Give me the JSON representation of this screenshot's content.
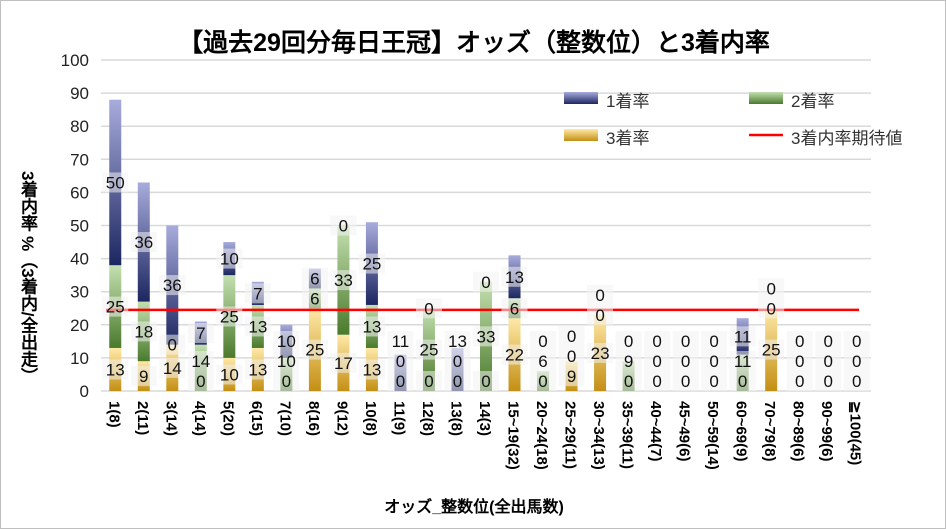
{
  "chart_data": {
    "type": "bar",
    "stacked": true,
    "title": "【過去29回分毎日王冠】オッズ（整数位）と3着内率",
    "xlabel": "オッズ_整数位(全出馬数)",
    "ylabel": "3着内率 %（3着内/全出走）",
    "ylim": [
      0,
      100
    ],
    "yticks": [
      0,
      10,
      20,
      30,
      40,
      50,
      60,
      70,
      80,
      90,
      100
    ],
    "grid": true,
    "legend": "top-right",
    "categories": [
      "1(8)",
      "2(11)",
      "3(14)",
      "4(14)",
      "5(20)",
      "6(15)",
      "7(10)",
      "8(16)",
      "9(12)",
      "10(8)",
      "11(9)",
      "12(8)",
      "13(8)",
      "14(3)",
      "15~19(32)",
      "20~24(18)",
      "25~29(11)",
      "30~34(13)",
      "35~39(11)",
      "40~44(7)",
      "45~49(6)",
      "50~59(14)",
      "60~69(9)",
      "70~79(8)",
      "80~89(6)",
      "90~99(6)",
      "≧100(45)"
    ],
    "series": [
      {
        "name": "3着率",
        "color": "#c8961e",
        "values": [
          13,
          9,
          14,
          0,
          10,
          13,
          0,
          25,
          17,
          13,
          0,
          0,
          0,
          0,
          22,
          0,
          9,
          23,
          0,
          0,
          0,
          0,
          0,
          25,
          0,
          0,
          0
        ]
      },
      {
        "name": "2着率",
        "color": "#5a8a3c",
        "values": [
          25,
          18,
          0,
          14,
          25,
          13,
          10,
          6,
          33,
          13,
          0,
          25,
          0,
          33,
          6,
          6,
          0,
          0,
          9,
          0,
          0,
          0,
          11,
          0,
          0,
          0,
          0
        ]
      },
      {
        "name": "1着率",
        "color": "#2e3a7a",
        "values": [
          50,
          36,
          36,
          7,
          10,
          7,
          10,
          6,
          0,
          25,
          11,
          0,
          13,
          0,
          13,
          0,
          0,
          0,
          0,
          0,
          0,
          0,
          11,
          0,
          0,
          0,
          0
        ]
      }
    ],
    "reference_line": {
      "name": "3着内率期待値",
      "value": 24.5,
      "color": "#ff0000"
    }
  }
}
